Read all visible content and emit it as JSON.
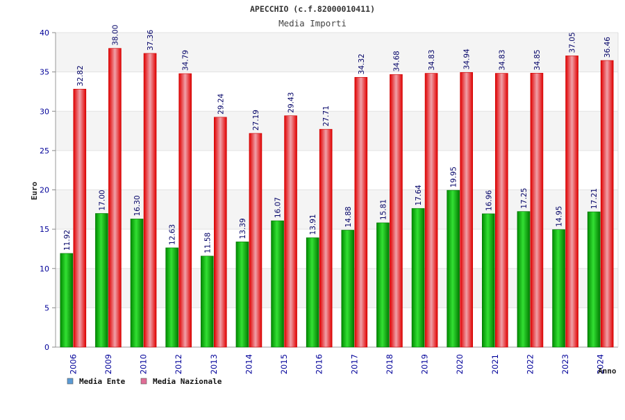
{
  "chart_data": {
    "type": "bar",
    "title": "APECCHIO (c.f.82000010411)",
    "subtitle": "Media Importi",
    "xlabel": "Anno",
    "ylabel": "Euro",
    "ylim": [
      0,
      40
    ],
    "yticks": [
      0,
      5,
      10,
      15,
      20,
      25,
      30,
      35,
      40
    ],
    "categories": [
      "2006",
      "2009",
      "2010",
      "2012",
      "2013",
      "2014",
      "2015",
      "2016",
      "2017",
      "2018",
      "2019",
      "2020",
      "2021",
      "2022",
      "2023",
      "2024"
    ],
    "series": [
      {
        "name": "Media Ente",
        "values": [
          11.92,
          17.0,
          16.3,
          12.63,
          11.58,
          13.39,
          16.07,
          13.91,
          14.88,
          15.81,
          17.64,
          19.95,
          16.96,
          17.25,
          14.95,
          17.21
        ],
        "labels": [
          "11.92",
          "17.00",
          "16.30",
          "12.63",
          "11.58",
          "13.39",
          "16.07",
          "13.91",
          "14.88",
          "15.81",
          "17.64",
          "19.95",
          "16.96",
          "17.25",
          "14.95",
          "17.21"
        ],
        "color": "#00b000"
      },
      {
        "name": "Media Nazionale",
        "values": [
          32.82,
          38.0,
          37.36,
          34.79,
          29.24,
          27.19,
          29.43,
          27.71,
          34.32,
          34.68,
          34.83,
          34.94,
          34.83,
          34.85,
          37.05,
          36.46
        ],
        "labels": [
          "32.82",
          "38.00",
          "37.36",
          "34.79",
          "29.24",
          "27.19",
          "29.43",
          "27.71",
          "34.32",
          "34.68",
          "34.83",
          "34.94",
          "34.83",
          "34.85",
          "37.05",
          "36.46"
        ],
        "color": "#ee1111"
      }
    ],
    "legend": {
      "position": "bottom-left",
      "items": [
        {
          "label": "Media Ente",
          "color": "#5b9bd5"
        },
        {
          "label": "Media Nazionale",
          "color": "#e06d96"
        }
      ]
    },
    "grid": true,
    "band_colors": [
      "#f4f4f4",
      "#ffffff"
    ],
    "tick_color": "#000099",
    "label_color": "#000066"
  }
}
